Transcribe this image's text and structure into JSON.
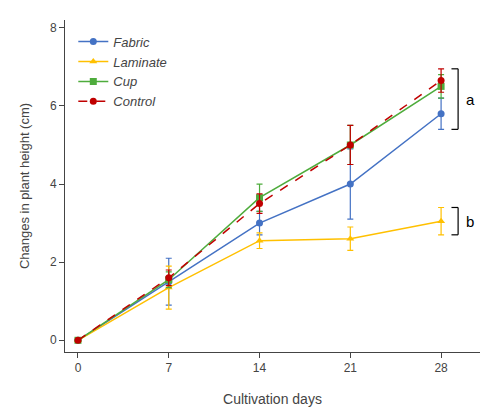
{
  "chart_data": {
    "type": "line",
    "x": [
      0,
      7,
      14,
      21,
      28
    ],
    "series": [
      {
        "name": "Fabric",
        "color": "#4472C4",
        "marker": "circle",
        "line_style": "solid",
        "values": [
          0,
          1.5,
          3.0,
          4.0,
          5.8
        ],
        "err": [
          0,
          0.6,
          0.3,
          0.9,
          0.4
        ]
      },
      {
        "name": "Laminate",
        "color": "#FFC000",
        "marker": "triangle-up",
        "line_style": "solid",
        "values": [
          0,
          1.35,
          2.55,
          2.6,
          3.05
        ],
        "err": [
          0,
          0.55,
          0.2,
          0.3,
          0.35
        ]
      },
      {
        "name": "Cup",
        "color": "#4EAC3C",
        "marker": "square",
        "line_style": "solid",
        "values": [
          0,
          1.55,
          3.65,
          5.0,
          6.5
        ],
        "err": [
          0,
          0.2,
          0.35,
          0.5,
          0.3
        ]
      },
      {
        "name": "Control",
        "color": "#C00000",
        "marker": "circle",
        "line_style": "dash",
        "values": [
          0,
          1.6,
          3.5,
          5.0,
          6.65
        ],
        "err": [
          0,
          0.2,
          0.25,
          0.5,
          0.3
        ]
      }
    ],
    "xlabel": "Cultivation days",
    "ylabel": "Changes in plant height (cm)",
    "xlim": [
      -1,
      31
    ],
    "ylim": [
      -0.3,
      8.2
    ],
    "xticks": [
      0,
      7,
      14,
      21,
      28
    ],
    "yticks": [
      0,
      2,
      4,
      6,
      8
    ],
    "grid": false,
    "legend": "upper left",
    "annotations": [
      {
        "text": "a",
        "series": [
          "Fabric",
          "Cup",
          "Control"
        ]
      },
      {
        "text": "b",
        "series": [
          "Laminate"
        ]
      }
    ]
  }
}
